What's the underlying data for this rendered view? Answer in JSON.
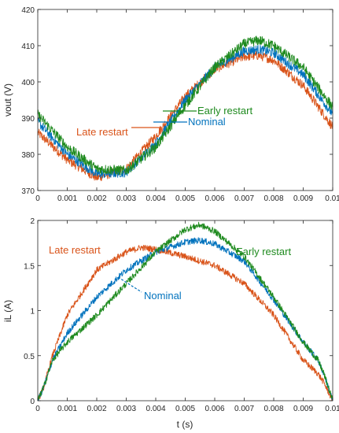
{
  "chart_data": [
    {
      "type": "line",
      "title": "",
      "xlabel": "",
      "ylabel": "vout (V)",
      "xlim": [
        0,
        0.01
      ],
      "ylim": [
        370,
        420
      ],
      "xticks": [
        "0",
        "0.001",
        "0.002",
        "0.003",
        "0.004",
        "0.005",
        "0.006",
        "0.007",
        "0.008",
        "0.009",
        "0.01"
      ],
      "yticks": [
        "370",
        "380",
        "390",
        "400",
        "410",
        "420"
      ],
      "grid": false,
      "legend": "none",
      "series": [
        {
          "name": "Late restart",
          "color": "#d95319",
          "x": [
            0,
            0.001,
            0.002,
            0.003,
            0.004,
            0.005,
            0.006,
            0.007,
            0.0075,
            0.008,
            0.009,
            0.01
          ],
          "y": [
            386,
            378.5,
            373.5,
            376,
            385,
            396,
            403.5,
            407,
            407.3,
            406,
            399,
            387.5
          ],
          "noise": 1.3
        },
        {
          "name": "Nominal",
          "color": "#0072bd",
          "x": [
            0,
            0.001,
            0.002,
            0.003,
            0.004,
            0.005,
            0.006,
            0.007,
            0.0075,
            0.008,
            0.009,
            0.01
          ],
          "y": [
            389,
            380,
            374.5,
            375,
            383,
            395,
            404,
            408.5,
            409,
            408,
            402,
            391
          ],
          "noise": 1.3
        },
        {
          "name": "Early restart",
          "color": "#1e8a1e",
          "x": [
            0,
            0.001,
            0.002,
            0.003,
            0.004,
            0.005,
            0.006,
            0.007,
            0.0075,
            0.008,
            0.009,
            0.01
          ],
          "y": [
            391,
            382,
            376,
            375.5,
            382,
            393.5,
            404,
            410.5,
            411.5,
            410,
            404,
            393
          ],
          "noise": 1.4
        }
      ],
      "annotations": [
        {
          "text": "Early restart",
          "color": "#1e8a1e"
        },
        {
          "text": "Nominal",
          "color": "#0072bd"
        },
        {
          "text": "Late restart",
          "color": "#d95319"
        }
      ]
    },
    {
      "type": "line",
      "title": "",
      "xlabel": "t (s)",
      "ylabel": "iL (A)",
      "xlim": [
        0,
        0.01
      ],
      "ylim": [
        0,
        2
      ],
      "xticks": [
        "0",
        "0.001",
        "0.002",
        "0.003",
        "0.004",
        "0.005",
        "0.006",
        "0.007",
        "0.008",
        "0.009",
        "0.01"
      ],
      "yticks": [
        "0",
        "0.5",
        "1",
        "1.5",
        "2"
      ],
      "grid": false,
      "legend": "none",
      "series": [
        {
          "name": "Late restart",
          "color": "#d95319",
          "x": [
            0,
            0.0002,
            0.0005,
            0.001,
            0.002,
            0.003,
            0.0035,
            0.004,
            0.005,
            0.006,
            0.007,
            0.008,
            0.009,
            0.0095,
            0.0097,
            0.01
          ],
          "y": [
            0,
            0.15,
            0.5,
            0.95,
            1.45,
            1.65,
            1.7,
            1.68,
            1.6,
            1.5,
            1.3,
            0.95,
            0.45,
            0.3,
            0.2,
            0
          ],
          "noise": 0.035
        },
        {
          "name": "Nominal",
          "color": "#0072bd",
          "x": [
            0,
            0.0002,
            0.0005,
            0.001,
            0.002,
            0.003,
            0.004,
            0.005,
            0.0055,
            0.006,
            0.007,
            0.008,
            0.009,
            0.0095,
            0.0097,
            0.01
          ],
          "y": [
            0,
            0.15,
            0.45,
            0.75,
            1.15,
            1.45,
            1.65,
            1.76,
            1.78,
            1.74,
            1.55,
            1.12,
            0.65,
            0.45,
            0.3,
            0
          ],
          "noise": 0.035
        },
        {
          "name": "Early restart",
          "color": "#1e8a1e",
          "x": [
            0,
            0.0002,
            0.0005,
            0.001,
            0.002,
            0.003,
            0.004,
            0.005,
            0.0055,
            0.006,
            0.007,
            0.008,
            0.009,
            0.0095,
            0.0097,
            0.01
          ],
          "y": [
            0,
            0.15,
            0.45,
            0.65,
            0.95,
            1.3,
            1.65,
            1.9,
            1.95,
            1.88,
            1.6,
            1.15,
            0.65,
            0.45,
            0.3,
            0
          ],
          "noise": 0.035
        }
      ],
      "annotations": [
        {
          "text": "Late restart",
          "color": "#d95319"
        },
        {
          "text": "Early restart",
          "color": "#1e8a1e"
        },
        {
          "text": "Nominal",
          "color": "#0072bd"
        }
      ]
    }
  ]
}
